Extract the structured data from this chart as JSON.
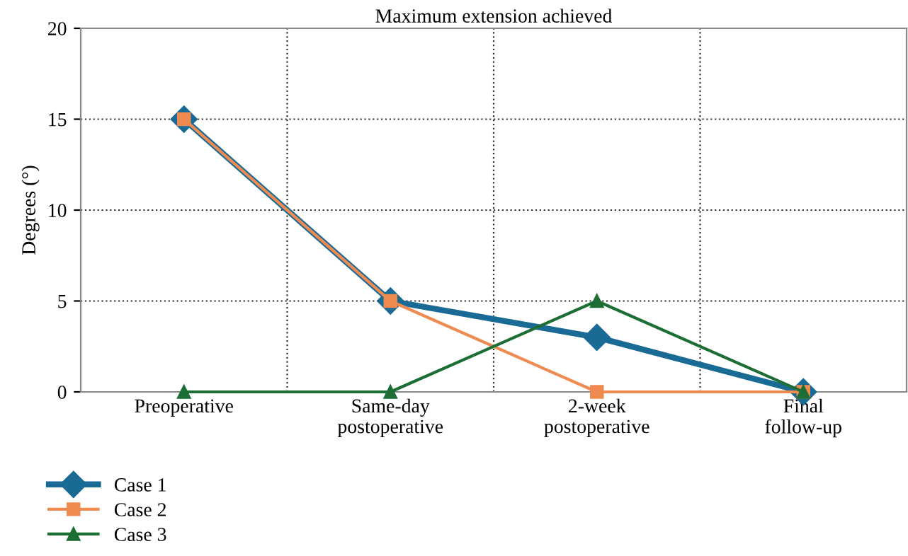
{
  "chart_data": {
    "type": "line",
    "title": "Maximum extension achieved",
    "ylabel": "Degrees (°)",
    "categories": [
      "Preoperative",
      "Same-day\npostoperative",
      "2-week\npostoperative",
      "Final\nfollow-up"
    ],
    "series": [
      {
        "name": "Case 1",
        "color": "#1a6a96",
        "values": [
          15,
          5,
          3,
          0
        ],
        "marker": "diamond"
      },
      {
        "name": "Case 2",
        "color": "#ef8a50",
        "values": [
          15,
          5,
          0,
          0
        ],
        "marker": "square"
      },
      {
        "name": "Case 3",
        "color": "#1c6e35",
        "values": [
          0,
          0,
          5,
          0
        ],
        "marker": "triangle"
      }
    ],
    "ylim": [
      0,
      20
    ],
    "yticks": [
      0,
      5,
      10,
      15,
      20
    ],
    "grid": true,
    "legend": "bottom left",
    "line_style": "solid"
  }
}
